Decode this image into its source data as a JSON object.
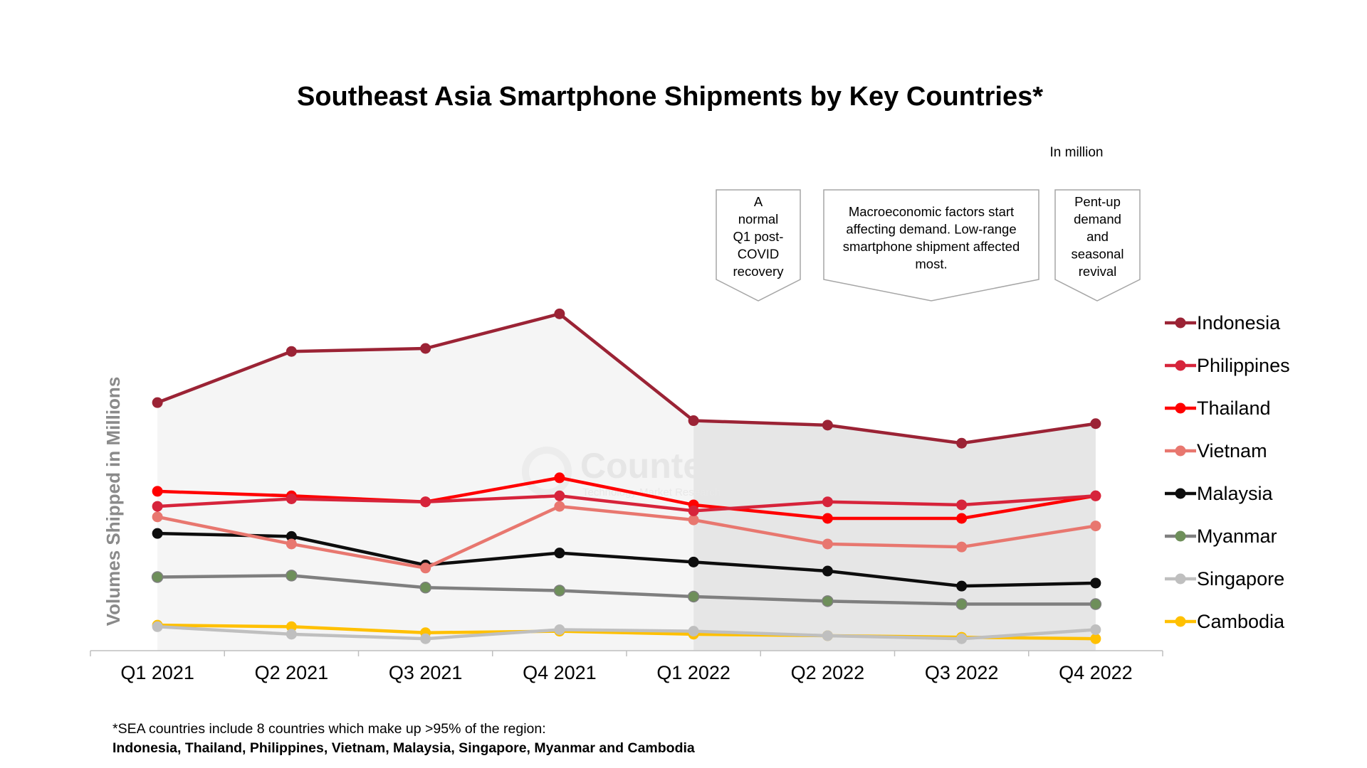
{
  "chart_data": {
    "type": "line",
    "title": "Southeast Asia Smartphone Shipments by Key Countries*",
    "unit_note": "In million",
    "ylabel": "Volumes Shipped in Millions",
    "xlabel": "",
    "categories": [
      "Q1 2021",
      "Q2 2021",
      "Q3 2021",
      "Q4 2021",
      "Q1 2022",
      "Q2 2022",
      "Q3 2022",
      "Q4 2022"
    ],
    "ylim": [
      0,
      10.3
    ],
    "grid": false,
    "legend_position": "right",
    "series": [
      {
        "name": "Indonesia",
        "color": "#9b2335",
        "values": [
          8.2,
          9.9,
          10.0,
          11.15,
          7.6,
          7.45,
          6.85,
          7.5
        ]
      },
      {
        "name": "Philippines",
        "color": "#d6243b",
        "values": [
          4.75,
          5.0,
          4.9,
          5.1,
          4.6,
          4.9,
          4.8,
          5.1
        ]
      },
      {
        "name": "Thailand",
        "color": "#ff0000",
        "values": [
          5.25,
          5.1,
          4.9,
          5.7,
          4.8,
          4.35,
          4.35,
          5.1
        ]
      },
      {
        "name": "Vietnam",
        "color": "#e8776f",
        "values": [
          4.4,
          3.5,
          2.7,
          4.75,
          4.3,
          3.5,
          3.4,
          4.1
        ]
      },
      {
        "name": "Malaysia",
        "color": "#0d0d0d",
        "values": [
          3.85,
          3.75,
          2.8,
          3.2,
          2.9,
          2.6,
          2.1,
          2.2
        ]
      },
      {
        "name": "Myanmar",
        "color": "#7f7f7f",
        "marker_color": "#6e8f5a",
        "values": [
          2.4,
          2.45,
          2.05,
          1.95,
          1.75,
          1.6,
          1.5,
          1.5
        ]
      },
      {
        "name": "Singapore",
        "color": "#bfbfbf",
        "values": [
          0.75,
          0.5,
          0.35,
          0.65,
          0.6,
          0.45,
          0.35,
          0.65
        ]
      },
      {
        "name": "Cambodia",
        "color": "#ffc000",
        "values": [
          0.8,
          0.75,
          0.55,
          0.6,
          0.5,
          0.45,
          0.4,
          0.35
        ]
      }
    ],
    "annotations": [
      {
        "text": "A normal Q1 post-COVID recovery",
        "lines": [
          "A",
          "normal",
          "Q1 post-",
          "COVID",
          "recovery"
        ]
      },
      {
        "text": "Macroeconomic factors start affecting demand. Low-range smartphone shipment affected most.",
        "lines": [
          "Macroeconomic factors start",
          "affecting demand. Low-range",
          "smartphone shipment affected",
          "most."
        ]
      },
      {
        "text": "Pent-up demand and seasonal revival",
        "lines": [
          "Pent-up",
          "demand",
          "and",
          "seasonal",
          "revival"
        ]
      }
    ]
  },
  "watermark": {
    "brand": "Counterpoint",
    "tagline": "Technology Market Research"
  },
  "footnote": {
    "line1": "*SEA countries include 8 countries which make up >95% of the region:",
    "line2": "Indonesia, Thailand, Philippines, Vietnam, Malaysia, Singapore, Myanmar and Cambodia"
  }
}
